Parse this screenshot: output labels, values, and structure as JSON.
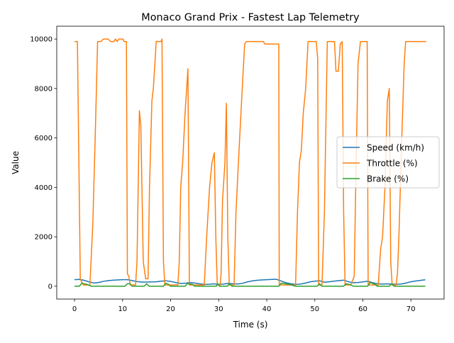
{
  "chart_data": {
    "type": "line",
    "title": "Monaco Grand Prix - Fastest Lap Telemetry",
    "xlabel": "Time (s)",
    "ylabel": "Value",
    "xlim": [
      -3.7,
      76.9
    ],
    "ylim": [
      -520,
      10520
    ],
    "xticks": [
      0,
      10,
      20,
      30,
      40,
      50,
      60,
      70
    ],
    "yticks": [
      0,
      2000,
      4000,
      6000,
      8000,
      10000
    ],
    "grid": false,
    "legend_position": "center-right",
    "series": [
      {
        "name": "Speed (km/h)",
        "color": "#1f77b4",
        "points": [
          [
            0,
            265
          ],
          [
            1,
            275
          ],
          [
            2,
            240
          ],
          [
            3,
            175
          ],
          [
            4,
            130
          ],
          [
            5,
            150
          ],
          [
            6,
            195
          ],
          [
            7,
            225
          ],
          [
            8,
            245
          ],
          [
            9,
            255
          ],
          [
            10,
            265
          ],
          [
            11,
            265
          ],
          [
            12,
            230
          ],
          [
            13,
            185
          ],
          [
            14,
            170
          ],
          [
            15,
            170
          ],
          [
            16,
            175
          ],
          [
            17,
            180
          ],
          [
            18,
            205
          ],
          [
            19,
            220
          ],
          [
            20,
            195
          ],
          [
            21,
            150
          ],
          [
            22,
            110
          ],
          [
            23,
            120
          ],
          [
            24,
            150
          ],
          [
            25,
            130
          ],
          [
            26,
            95
          ],
          [
            27,
            75
          ],
          [
            28,
            80
          ],
          [
            29,
            95
          ],
          [
            30,
            70
          ],
          [
            31,
            85
          ],
          [
            32,
            115
          ],
          [
            33,
            95
          ],
          [
            34,
            90
          ],
          [
            35,
            120
          ],
          [
            36,
            175
          ],
          [
            37,
            215
          ],
          [
            38,
            240
          ],
          [
            39,
            255
          ],
          [
            40,
            265
          ],
          [
            41,
            275
          ],
          [
            42,
            280
          ],
          [
            43,
            210
          ],
          [
            44,
            140
          ],
          [
            45,
            100
          ],
          [
            46,
            70
          ],
          [
            47,
            85
          ],
          [
            48,
            125
          ],
          [
            49,
            175
          ],
          [
            50,
            205
          ],
          [
            51,
            220
          ],
          [
            52,
            160
          ],
          [
            53,
            180
          ],
          [
            54,
            205
          ],
          [
            55,
            225
          ],
          [
            56,
            245
          ],
          [
            57,
            180
          ],
          [
            58,
            140
          ],
          [
            59,
            150
          ],
          [
            60,
            175
          ],
          [
            61,
            200
          ],
          [
            62,
            145
          ],
          [
            63,
            100
          ],
          [
            64,
            85
          ],
          [
            65,
            95
          ],
          [
            66,
            85
          ],
          [
            67,
            80
          ],
          [
            68,
            90
          ],
          [
            69,
            130
          ],
          [
            70,
            180
          ],
          [
            71,
            210
          ],
          [
            72,
            235
          ],
          [
            73,
            260
          ]
        ]
      },
      {
        "name": "Throttle (%)",
        "color": "#ff7f0e",
        "points": [
          [
            0,
            9900
          ],
          [
            0.6,
            9900
          ],
          [
            1.2,
            300
          ],
          [
            1.8,
            50
          ],
          [
            3.2,
            50
          ],
          [
            3.8,
            2500
          ],
          [
            4.3,
            6000
          ],
          [
            4.8,
            9900
          ],
          [
            5.5,
            9900
          ],
          [
            6,
            10000
          ],
          [
            7,
            10000
          ],
          [
            7.5,
            9900
          ],
          [
            8.2,
            9900
          ],
          [
            8.5,
            10000
          ],
          [
            8.9,
            9900
          ],
          [
            9.2,
            10000
          ],
          [
            10.1,
            10000
          ],
          [
            10.3,
            9900
          ],
          [
            10.8,
            9900
          ],
          [
            11,
            500
          ],
          [
            11.3,
            400
          ],
          [
            11.6,
            50
          ],
          [
            12.7,
            50
          ],
          [
            13,
            1000
          ],
          [
            13.5,
            7100
          ],
          [
            13.8,
            6500
          ],
          [
            14.3,
            1000
          ],
          [
            14.8,
            300
          ],
          [
            15.3,
            300
          ],
          [
            15.6,
            4000
          ],
          [
            16.1,
            7500
          ],
          [
            16.4,
            8000
          ],
          [
            17,
            9900
          ],
          [
            18,
            9900
          ],
          [
            18.2,
            10000
          ],
          [
            18.5,
            1000
          ],
          [
            18.8,
            50
          ],
          [
            21.5,
            50
          ],
          [
            21.8,
            1000
          ],
          [
            22.1,
            4000
          ],
          [
            22.5,
            5000
          ],
          [
            23,
            7000
          ],
          [
            23.6,
            8800
          ],
          [
            23.9,
            50
          ],
          [
            27,
            50
          ],
          [
            27.5,
            2000
          ],
          [
            28.1,
            4000
          ],
          [
            28.6,
            5000
          ],
          [
            29.1,
            5400
          ],
          [
            29.4,
            2000
          ],
          [
            29.7,
            50
          ],
          [
            30.3,
            50
          ],
          [
            30.5,
            500
          ],
          [
            30.8,
            3500
          ],
          [
            31.3,
            5000
          ],
          [
            31.6,
            7400
          ],
          [
            31.9,
            2000
          ],
          [
            32.2,
            50
          ],
          [
            33.2,
            50
          ],
          [
            33.6,
            3000
          ],
          [
            34.1,
            5000
          ],
          [
            34.9,
            8000
          ],
          [
            35.4,
            9800
          ],
          [
            35.8,
            9900
          ],
          [
            39.3,
            9900
          ],
          [
            39.6,
            9800
          ],
          [
            42.5,
            9800
          ],
          [
            42.6,
            50
          ],
          [
            46,
            50
          ],
          [
            46.4,
            3000
          ],
          [
            46.8,
            5000
          ],
          [
            47.2,
            5500
          ],
          [
            47.6,
            7000
          ],
          [
            48.1,
            8000
          ],
          [
            48.6,
            9900
          ],
          [
            50.3,
            9900
          ],
          [
            50.6,
            9200
          ],
          [
            50.8,
            50
          ],
          [
            51.5,
            50
          ],
          [
            52,
            3000
          ],
          [
            52.6,
            9900
          ],
          [
            54.1,
            9900
          ],
          [
            54.4,
            8700
          ],
          [
            54.9,
            8700
          ],
          [
            55.3,
            9800
          ],
          [
            55.7,
            9900
          ],
          [
            56,
            3000
          ],
          [
            56.3,
            50
          ],
          [
            57.5,
            50
          ],
          [
            58.2,
            400
          ],
          [
            58.6,
            5000
          ],
          [
            59,
            9000
          ],
          [
            59.5,
            9900
          ],
          [
            60.9,
            9900
          ],
          [
            61.1,
            50
          ],
          [
            63.2,
            50
          ],
          [
            63.7,
            1500
          ],
          [
            64.1,
            2000
          ],
          [
            64.6,
            4000
          ],
          [
            65.1,
            7500
          ],
          [
            65.5,
            8000
          ],
          [
            65.8,
            1000
          ],
          [
            66.1,
            50
          ],
          [
            66.9,
            50
          ],
          [
            67.2,
            500
          ],
          [
            67.5,
            2000
          ],
          [
            68.1,
            6000
          ],
          [
            68.6,
            9000
          ],
          [
            68.9,
            9900
          ],
          [
            73.2,
            9900
          ]
        ]
      },
      {
        "name": "Brake (%)",
        "color": "#2ca02c",
        "points": [
          [
            0,
            0
          ],
          [
            1,
            0
          ],
          [
            1.5,
            120
          ],
          [
            2.5,
            80
          ],
          [
            3.5,
            0
          ],
          [
            10.5,
            0
          ],
          [
            11,
            100
          ],
          [
            11.5,
            100
          ],
          [
            12,
            0
          ],
          [
            14.5,
            0
          ],
          [
            15,
            100
          ],
          [
            15.5,
            0
          ],
          [
            18.5,
            0
          ],
          [
            19,
            120
          ],
          [
            19.5,
            80
          ],
          [
            20,
            0
          ],
          [
            23,
            0
          ],
          [
            23.5,
            100
          ],
          [
            24.5,
            80
          ],
          [
            25,
            0
          ],
          [
            29.5,
            0
          ],
          [
            29.8,
            100
          ],
          [
            30.2,
            0
          ],
          [
            31.8,
            0
          ],
          [
            32.2,
            100
          ],
          [
            32.8,
            0
          ],
          [
            42.5,
            0
          ],
          [
            43,
            120
          ],
          [
            44,
            100
          ],
          [
            45,
            60
          ],
          [
            46,
            0
          ],
          [
            50.5,
            0
          ],
          [
            51,
            100
          ],
          [
            51.5,
            0
          ],
          [
            56,
            0
          ],
          [
            56.5,
            100
          ],
          [
            57.5,
            50
          ],
          [
            58,
            0
          ],
          [
            61,
            0
          ],
          [
            61.5,
            150
          ],
          [
            62.5,
            80
          ],
          [
            63,
            0
          ],
          [
            65.5,
            0
          ],
          [
            66,
            100
          ],
          [
            66.5,
            0
          ],
          [
            73,
            0
          ]
        ]
      }
    ]
  }
}
